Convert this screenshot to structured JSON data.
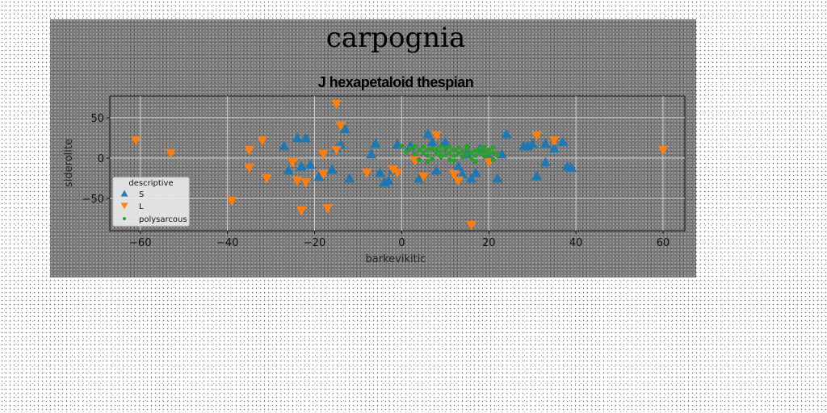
{
  "figure": {
    "suptitle": "carpognia"
  },
  "chart_data": {
    "type": "scatter",
    "title": "J hexapetaloid thespian",
    "xlabel": "barkevikitic",
    "ylabel": "siderolite",
    "xlim": [
      -67,
      65
    ],
    "ylim": [
      -90,
      77
    ],
    "xticks": [
      -60,
      -40,
      -20,
      0,
      20,
      40,
      60
    ],
    "yticks": [
      -50,
      0,
      50
    ],
    "xtick_labels": [
      "−60",
      "−40",
      "−20",
      "0",
      "20",
      "40",
      "60"
    ],
    "ytick_labels": [
      "−50",
      "0",
      "50"
    ],
    "grid": true,
    "legend": {
      "title": "descriptive",
      "placement": "lower-left"
    },
    "series": [
      {
        "name": "S",
        "marker": "triangle-up",
        "color": "#1f77b4",
        "points": [
          [
            -27,
            15
          ],
          [
            -24,
            25
          ],
          [
            -22,
            25
          ],
          [
            -21,
            -8
          ],
          [
            -15,
            12
          ],
          [
            -14,
            17
          ],
          [
            -12,
            -25
          ],
          [
            -7,
            5
          ],
          [
            -6,
            18
          ],
          [
            -5,
            -18
          ],
          [
            -4,
            -30
          ],
          [
            -3,
            -28
          ],
          [
            -2,
            -15
          ],
          [
            -1,
            17
          ],
          [
            2,
            15
          ],
          [
            4,
            -25
          ],
          [
            6,
            30
          ],
          [
            7,
            20
          ],
          [
            8,
            -15
          ],
          [
            10,
            20
          ],
          [
            13,
            -10
          ],
          [
            14,
            -20
          ],
          [
            15,
            5
          ],
          [
            16,
            -25
          ],
          [
            17,
            -18
          ],
          [
            18,
            12
          ],
          [
            20,
            2
          ],
          [
            22,
            -25
          ],
          [
            23,
            5
          ],
          [
            24,
            30
          ],
          [
            28,
            15
          ],
          [
            29,
            15
          ],
          [
            30,
            18
          ],
          [
            31,
            -22
          ],
          [
            33,
            -5
          ],
          [
            33,
            18
          ],
          [
            35,
            12
          ],
          [
            37,
            20
          ],
          [
            38,
            -10
          ],
          [
            39,
            -12
          ],
          [
            -19,
            -23
          ],
          [
            -26,
            -15
          ],
          [
            -23,
            -10
          ],
          [
            -16,
            -14
          ],
          [
            -13,
            36
          ]
        ]
      },
      {
        "name": "L",
        "marker": "triangle-down",
        "color": "#ff7f0e",
        "points": [
          [
            -61,
            22
          ],
          [
            -53,
            6
          ],
          [
            -39,
            -53
          ],
          [
            -35,
            -12
          ],
          [
            -35,
            10
          ],
          [
            -32,
            22
          ],
          [
            -31,
            -25
          ],
          [
            -25,
            -5
          ],
          [
            -24,
            -28
          ],
          [
            -23,
            -65
          ],
          [
            -18,
            -20
          ],
          [
            -18,
            5
          ],
          [
            -17,
            -62
          ],
          [
            -15,
            10
          ],
          [
            -14,
            40
          ],
          [
            -15,
            67
          ],
          [
            -8,
            -18
          ],
          [
            -2,
            -14
          ],
          [
            -1,
            -18
          ],
          [
            3,
            -3
          ],
          [
            5,
            -23
          ],
          [
            8,
            28
          ],
          [
            12,
            -20
          ],
          [
            13,
            -28
          ],
          [
            16,
            -83
          ],
          [
            20,
            -5
          ],
          [
            31,
            28
          ],
          [
            35,
            22
          ],
          [
            60,
            10
          ],
          [
            -22,
            -30
          ]
        ]
      },
      {
        "name": "polysarcous",
        "marker": "circle",
        "color": "#2ca02c",
        "points": [
          [
            0,
            15
          ],
          [
            1,
            8
          ],
          [
            2,
            12
          ],
          [
            3,
            5
          ],
          [
            3,
            15
          ],
          [
            4,
            10
          ],
          [
            4,
            -2
          ],
          [
            5,
            7
          ],
          [
            5,
            14
          ],
          [
            6,
            3
          ],
          [
            6,
            10
          ],
          [
            7,
            12
          ],
          [
            7,
            -1
          ],
          [
            8,
            6
          ],
          [
            8,
            11
          ],
          [
            9,
            2
          ],
          [
            9,
            8
          ],
          [
            10,
            12
          ],
          [
            10,
            4
          ],
          [
            11,
            7
          ],
          [
            11,
            -2
          ],
          [
            12,
            10
          ],
          [
            12,
            3
          ],
          [
            13,
            6
          ],
          [
            13,
            13
          ],
          [
            14,
            1
          ],
          [
            14,
            8
          ],
          [
            15,
            11
          ],
          [
            15,
            4
          ],
          [
            16,
            7
          ],
          [
            16,
            -1
          ],
          [
            17,
            9
          ],
          [
            17,
            3
          ],
          [
            18,
            6
          ],
          [
            18,
            12
          ],
          [
            19,
            2
          ],
          [
            19,
            8
          ],
          [
            20,
            5
          ],
          [
            20,
            10
          ],
          [
            21,
            7
          ],
          [
            21,
            13
          ],
          [
            22,
            4
          ],
          [
            9,
            15
          ],
          [
            11,
            14
          ],
          [
            15,
            15
          ],
          [
            19,
            14
          ],
          [
            6,
            -4
          ],
          [
            12,
            -3
          ],
          [
            17,
            -4
          ],
          [
            21,
            -2
          ]
        ]
      }
    ]
  }
}
